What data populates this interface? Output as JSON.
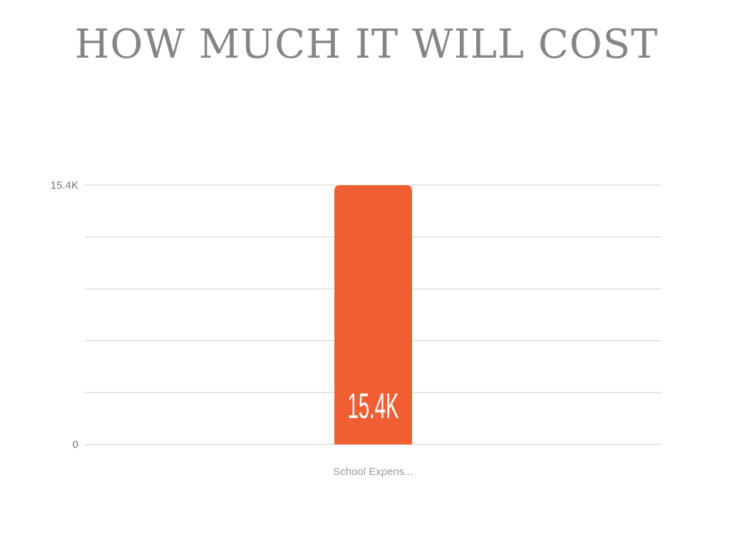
{
  "chart_data": {
    "type": "bar",
    "title": "HOW MUCH IT WILL COST",
    "categories": [
      "School Expens..."
    ],
    "values": [
      15400
    ],
    "data_labels": [
      "15.4K"
    ],
    "ylim": [
      0,
      15400
    ],
    "yticks": [
      {
        "value": 0,
        "label": "0"
      },
      {
        "value": 15400,
        "label": "15.4K"
      }
    ],
    "gridlines": 5,
    "grid": true,
    "xlabel": "",
    "ylabel": "",
    "colors": {
      "bar": "#F05F33",
      "grid": "#DDDDDD",
      "title": "#858585"
    }
  }
}
